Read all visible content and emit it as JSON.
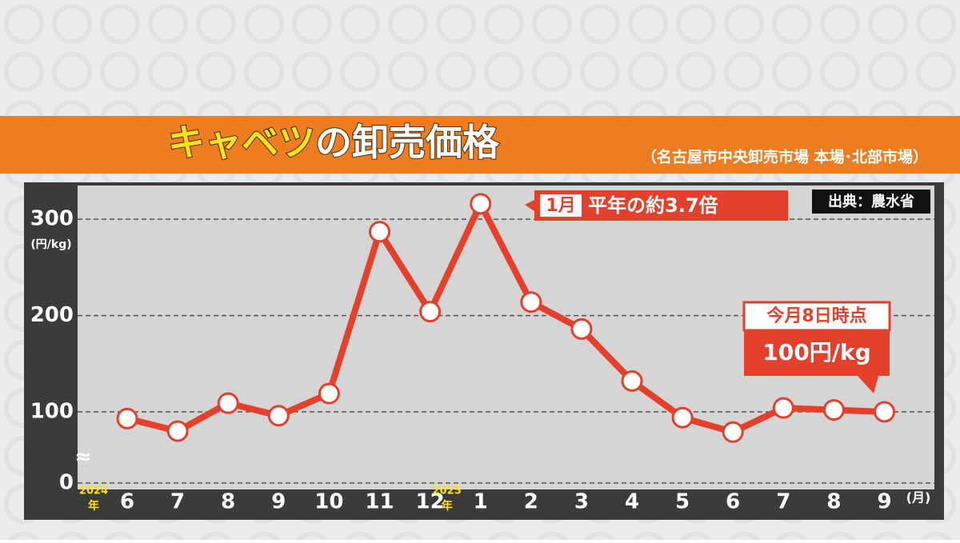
{
  "chart_data": {
    "type": "line",
    "title_highlight": "キャベツ",
    "title_rest": "の卸売価格",
    "subtitle": "（名古屋市中央卸売市場 本場･北部市場）",
    "source": "出典：農水省",
    "y_unit": "(円/kg)",
    "x_unit": "(月)",
    "year_labels": [
      "2024",
      "2025"
    ],
    "year_suffix": "年",
    "categories": [
      "6",
      "7",
      "8",
      "9",
      "10",
      "11",
      "12",
      "1",
      "2",
      "3",
      "4",
      "5",
      "6",
      "7",
      "8",
      "9"
    ],
    "series": [
      {
        "name": "卸売価格",
        "color": "#e5402b",
        "values": [
          93,
          80,
          109,
          96,
          119,
          287,
          204,
          316,
          214,
          186,
          132,
          94,
          79,
          104,
          102,
          100
        ]
      }
    ],
    "ylim": [
      0,
      335
    ],
    "yticks": [
      0,
      100,
      200,
      300
    ],
    "axis_break": true,
    "grid": true,
    "annotations": {
      "peak_tag": "1月",
      "peak_text": "平年の約3.7倍",
      "latest_date": "今月8日時点",
      "latest_value": "100円/kg"
    }
  }
}
